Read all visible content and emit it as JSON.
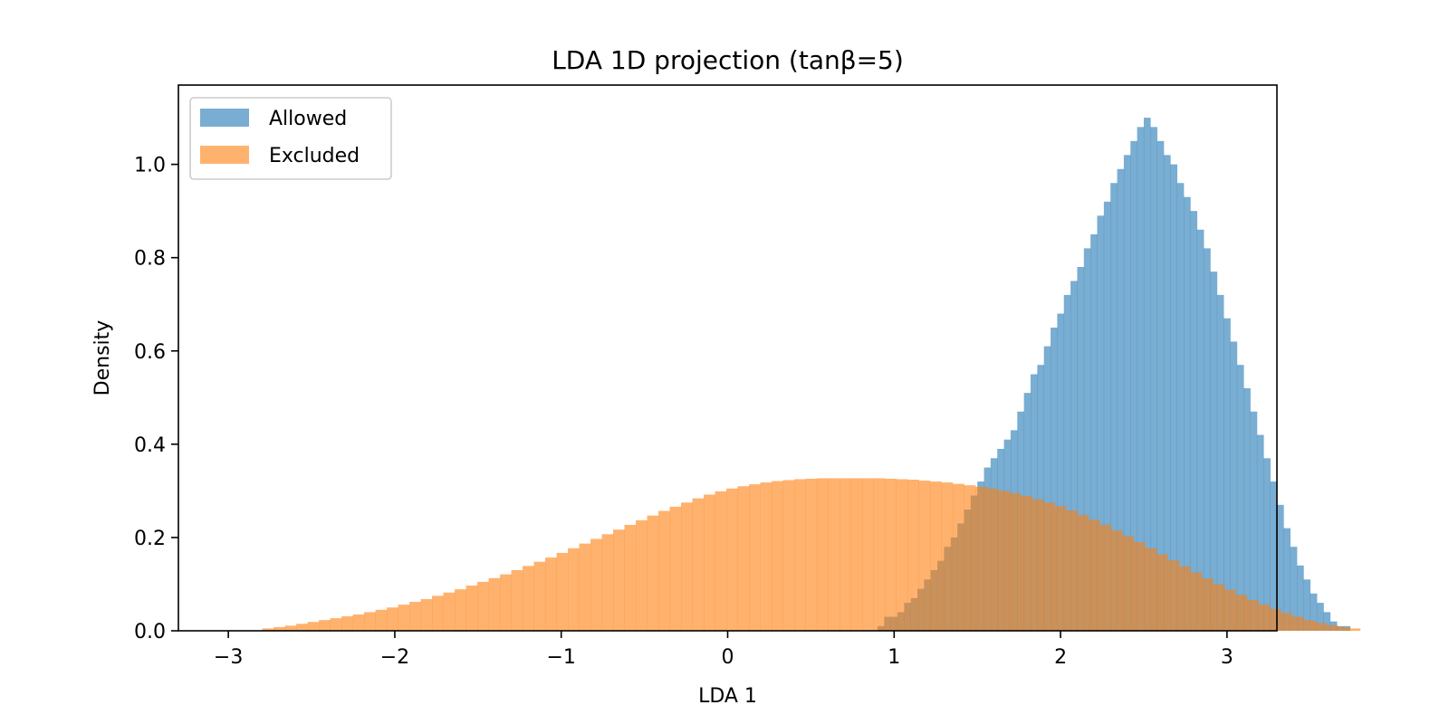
{
  "chart_data": {
    "type": "bar",
    "title": "LDA 1D projection (tanβ=5)",
    "xlabel": "LDA 1",
    "ylabel": "Density",
    "xlim": [
      -3.3,
      3.3
    ],
    "ylim": [
      0.0,
      1.17
    ],
    "x_ticks": [
      -3,
      -2,
      -1,
      0,
      1,
      2,
      3
    ],
    "x_tick_labels": [
      "−3",
      "−2",
      "−1",
      "0",
      "1",
      "2",
      "3"
    ],
    "y_ticks": [
      0.0,
      0.2,
      0.4,
      0.6,
      0.8,
      1.0
    ],
    "y_tick_labels": [
      "0.0",
      "0.2",
      "0.4",
      "0.6",
      "0.8",
      "1.0"
    ],
    "grid": false,
    "legend_position": "top-left",
    "series": [
      {
        "name": "Allowed",
        "color": "#1f77b4",
        "alpha": 0.6,
        "bin_edges_start": 0.9,
        "bin_width": 0.04,
        "values": [
          0.01,
          0.03,
          0.03,
          0.04,
          0.06,
          0.07,
          0.09,
          0.11,
          0.13,
          0.15,
          0.18,
          0.2,
          0.23,
          0.26,
          0.29,
          0.32,
          0.35,
          0.37,
          0.39,
          0.41,
          0.43,
          0.47,
          0.51,
          0.55,
          0.57,
          0.61,
          0.65,
          0.68,
          0.72,
          0.75,
          0.78,
          0.82,
          0.85,
          0.89,
          0.92,
          0.96,
          0.99,
          1.02,
          1.05,
          1.08,
          1.1,
          1.08,
          1.05,
          1.02,
          1.0,
          0.96,
          0.93,
          0.9,
          0.86,
          0.82,
          0.77,
          0.72,
          0.67,
          0.62,
          0.57,
          0.52,
          0.47,
          0.42,
          0.37,
          0.32,
          0.27,
          0.22,
          0.18,
          0.14,
          0.11,
          0.08,
          0.06,
          0.04,
          0.02,
          0.01,
          0.01
        ]
      },
      {
        "name": "Excluded",
        "color": "#ff7f0e",
        "alpha": 0.6,
        "bin_edges_start": -3.0,
        "bin_width": 0.068,
        "values": [
          0.0,
          0.0,
          0.0,
          0.005,
          0.008,
          0.011,
          0.015,
          0.019,
          0.023,
          0.027,
          0.031,
          0.035,
          0.04,
          0.045,
          0.05,
          0.056,
          0.062,
          0.068,
          0.075,
          0.082,
          0.089,
          0.097,
          0.105,
          0.113,
          0.121,
          0.13,
          0.139,
          0.148,
          0.157,
          0.167,
          0.177,
          0.187,
          0.197,
          0.207,
          0.217,
          0.227,
          0.237,
          0.247,
          0.257,
          0.266,
          0.275,
          0.284,
          0.292,
          0.299,
          0.305,
          0.31,
          0.314,
          0.318,
          0.321,
          0.323,
          0.325,
          0.326,
          0.327,
          0.327,
          0.327,
          0.327,
          0.327,
          0.327,
          0.326,
          0.325,
          0.324,
          0.322,
          0.32,
          0.318,
          0.315,
          0.312,
          0.309,
          0.305,
          0.3,
          0.295,
          0.289,
          0.282,
          0.275,
          0.267,
          0.258,
          0.248,
          0.238,
          0.227,
          0.215,
          0.203,
          0.19,
          0.177,
          0.164,
          0.151,
          0.138,
          0.125,
          0.112,
          0.1,
          0.088,
          0.077,
          0.066,
          0.056,
          0.047,
          0.038,
          0.03,
          0.023,
          0.017,
          0.012,
          0.008,
          0.005
        ]
      }
    ]
  }
}
